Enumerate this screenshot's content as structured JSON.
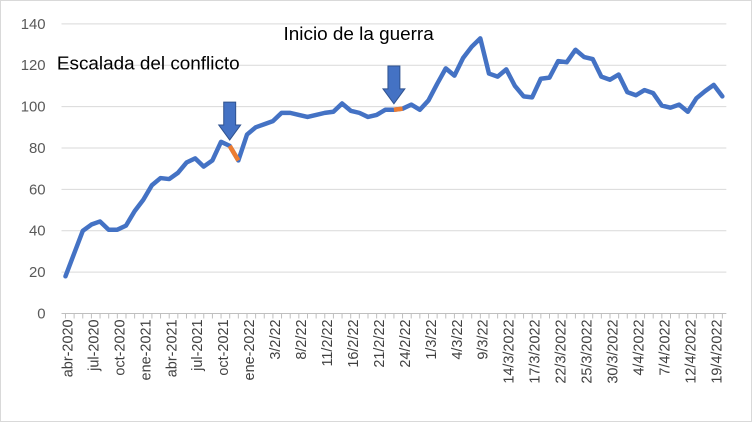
{
  "chart_data": {
    "type": "line",
    "title": "",
    "xlabel": "",
    "ylabel": "",
    "ylim": [
      0,
      140
    ],
    "yticks": [
      0,
      20,
      40,
      60,
      80,
      100,
      120,
      140
    ],
    "grid": "horizontal",
    "legend": "none",
    "colors": {
      "line": "#4472c4",
      "highlight": "#ed7d31",
      "grid": "#d9d9d9",
      "arrow": "#4472c4"
    },
    "x_tick_labels": [
      "abr-2020",
      "jul-2020",
      "oct-2020",
      "ene-2021",
      "abr-2021",
      "jul-2021",
      "oct-2021",
      "ene-2022",
      "3/2/22",
      "8/2/22",
      "11/2/22",
      "16/2/22",
      "21/2/22",
      "24/2/22",
      "1/3/22",
      "4/3/22",
      "9/3/22",
      "14/3/2022",
      "17/3/2022",
      "22/3/2022",
      "25/3/2022",
      "30/3/2022",
      "4/4/2022",
      "7/4/2022",
      "12/4/2022",
      "19/4/2022"
    ],
    "series": [
      {
        "values": [
          18,
          29,
          40,
          43,
          44.5,
          40.5,
          40.5,
          42.5,
          49.5,
          55,
          62,
          65.5,
          65,
          68,
          73,
          75,
          71,
          74,
          83,
          81,
          74,
          86.5,
          90,
          91.5,
          93,
          97,
          97,
          96,
          95,
          96,
          97,
          97.5,
          101.5,
          98,
          97,
          95,
          96,
          98.5,
          98.5,
          99,
          101,
          98.5,
          103,
          111,
          118.5,
          115,
          123.5,
          129,
          133,
          116,
          114.5,
          118,
          110,
          105,
          104.5,
          113.5,
          114,
          122,
          121.5,
          127.5,
          124,
          123,
          114.5,
          113,
          115.5,
          107,
          105.5,
          108,
          106.5,
          100.5,
          99.5,
          101,
          97.5,
          104,
          107.5,
          110.5,
          105
        ]
      }
    ],
    "highlight_segments": [
      [
        19,
        20
      ],
      [
        38,
        39
      ]
    ],
    "annotations": [
      {
        "text": "Escalada del conflicto",
        "index": 19
      },
      {
        "text": "Inicio de la guerra",
        "index": 38
      }
    ]
  }
}
